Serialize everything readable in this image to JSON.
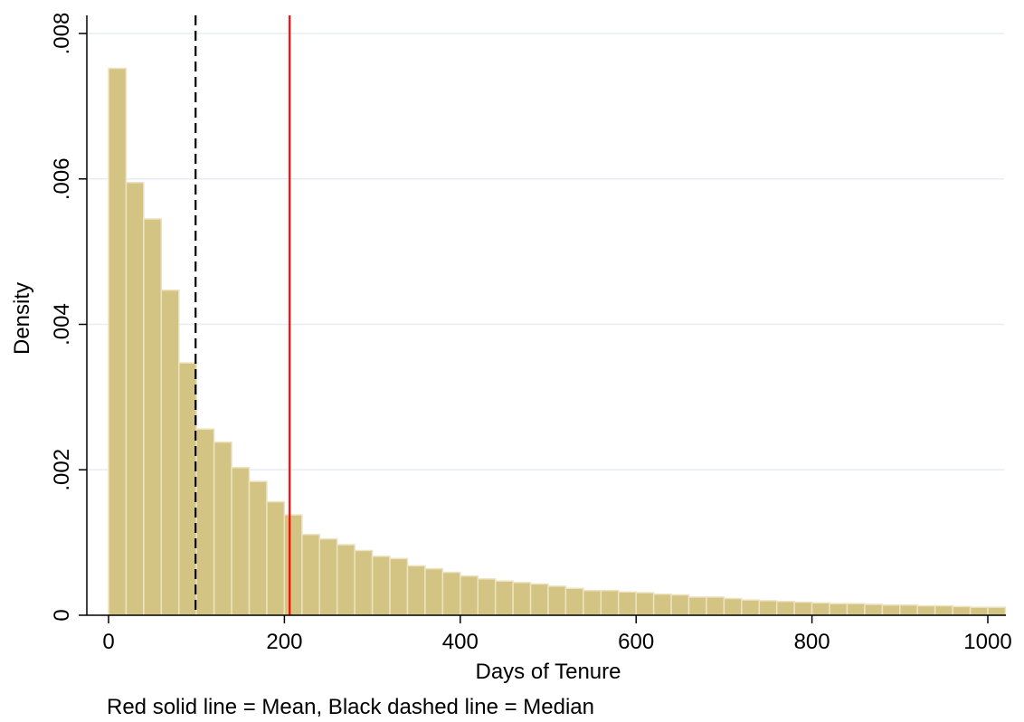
{
  "chart_data": {
    "type": "bar",
    "subtype": "histogram",
    "xlabel": "Days of Tenure",
    "ylabel": "Density",
    "note": "Red solid line = Mean, Black dashed line = Median",
    "xlim": [
      0,
      1000
    ],
    "ylim": [
      0,
      0.008
    ],
    "x_ticks": [
      {
        "value": 0,
        "label": "0"
      },
      {
        "value": 200,
        "label": "200"
      },
      {
        "value": 400,
        "label": "400"
      },
      {
        "value": 600,
        "label": "600"
      },
      {
        "value": 800,
        "label": "800"
      },
      {
        "value": 1000,
        "label": "1000"
      }
    ],
    "y_ticks": [
      {
        "value": 0,
        "label": "0"
      },
      {
        "value": 0.002,
        "label": ".002"
      },
      {
        "value": 0.004,
        "label": ".004"
      },
      {
        "value": 0.006,
        "label": ".006"
      },
      {
        "value": 0.008,
        "label": ".008"
      }
    ],
    "bin_width": 20,
    "bin_start": 0,
    "densities": [
      0.00752,
      0.00595,
      0.00545,
      0.00447,
      0.00347,
      0.00256,
      0.00238,
      0.00203,
      0.00184,
      0.00156,
      0.00138,
      0.00111,
      0.00105,
      0.00097,
      0.00089,
      0.00081,
      0.00078,
      0.00068,
      0.00064,
      0.00059,
      0.00054,
      0.0005,
      0.00047,
      0.00045,
      0.00043,
      0.0004,
      0.00037,
      0.00034,
      0.00034,
      0.00032,
      0.00031,
      0.00029,
      0.00028,
      0.00025,
      0.00025,
      0.00023,
      0.00021,
      0.0002,
      0.00019,
      0.00018,
      0.00017,
      0.00016,
      0.00016,
      0.00015,
      0.00014,
      0.00014,
      0.00013,
      0.00013,
      0.00012,
      0.00011,
      0.00011,
      0.00011,
      0.00011,
      0.00011,
      0.0001,
      0.0001,
      0.0001,
      0.0001,
      9e-05,
      9e-05
    ],
    "reference_lines": [
      {
        "name": "Mean",
        "x": 206,
        "color": "#ff0000",
        "style": "solid"
      },
      {
        "name": "Median",
        "x": 99,
        "color": "#000000",
        "style": "dashed"
      }
    ],
    "grid": true,
    "bar_color": "#d4c484",
    "bar_outline_color": "#ede3c0",
    "grid_color": "#e5eef4"
  }
}
